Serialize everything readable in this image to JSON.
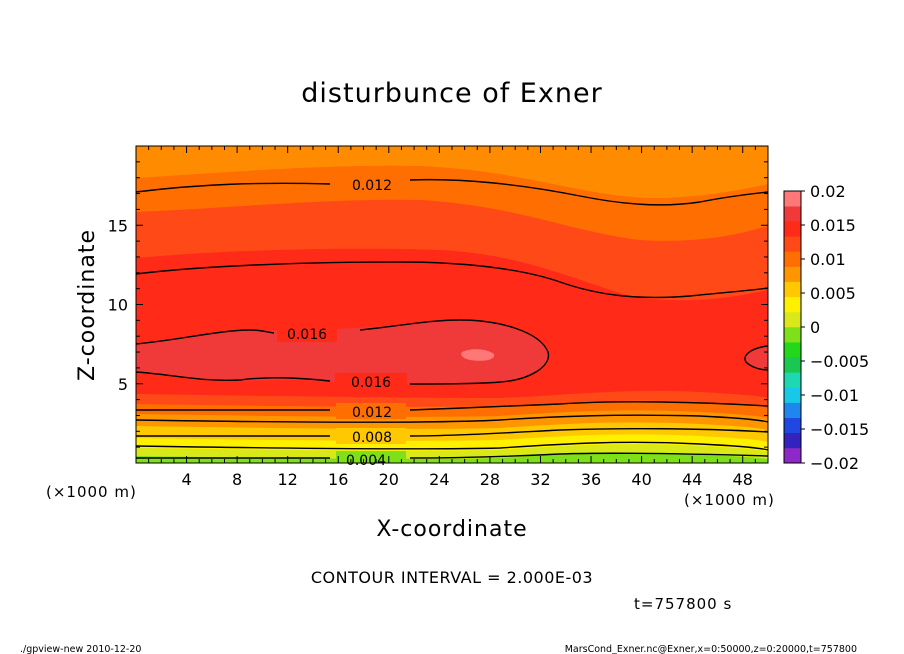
{
  "chart_data": {
    "type": "heatmap",
    "title": "disturbunce of Exner",
    "xlabel": "X-coordinate",
    "ylabel": "Z-coordinate",
    "x_unit": "(×1000 m)",
    "y_unit": "(×1000 m)",
    "xlim": [
      0,
      50
    ],
    "ylim": [
      0,
      20
    ],
    "x_ticks": [
      "4",
      "8",
      "12",
      "16",
      "20",
      "24",
      "28",
      "32",
      "36",
      "40",
      "44",
      "48"
    ],
    "x_tick_values": [
      4,
      8,
      12,
      16,
      20,
      24,
      28,
      32,
      36,
      40,
      44,
      48
    ],
    "y_ticks": [
      "5",
      "10",
      "15"
    ],
    "y_tick_values": [
      5,
      10,
      15
    ],
    "colorbar": {
      "labels": [
        "0.02",
        "0.015",
        "0.01",
        "0.005",
        "0",
        "−0.005",
        "−0.01",
        "−0.015",
        "−0.02"
      ],
      "range": [
        -0.02,
        0.02
      ],
      "colors": [
        "#8f28c8",
        "#3322bb",
        "#1e48e0",
        "#1f86ee",
        "#18c8e8",
        "#1dd8b0",
        "#18c850",
        "#22d818",
        "#7ee018",
        "#d8e818",
        "#fff000",
        "#ffc800",
        "#ff9600",
        "#ff6e00",
        "#ff4a18",
        "#ff2a18",
        "#f03a3a",
        "#ff7878"
      ]
    },
    "contour_labels": [
      "0.012",
      "0.016",
      "0.016",
      "0.012",
      "0.008",
      "0.004"
    ],
    "contour_interval_text": "CONTOUR INTERVAL = 2.000E-03",
    "time_text": "t=757800 s"
  },
  "footer": {
    "left": "./gpview-new  2010-12-20",
    "right": "MarsCond_Exner.nc@Exner,x=0:50000,z=0:20000,t=757800"
  }
}
